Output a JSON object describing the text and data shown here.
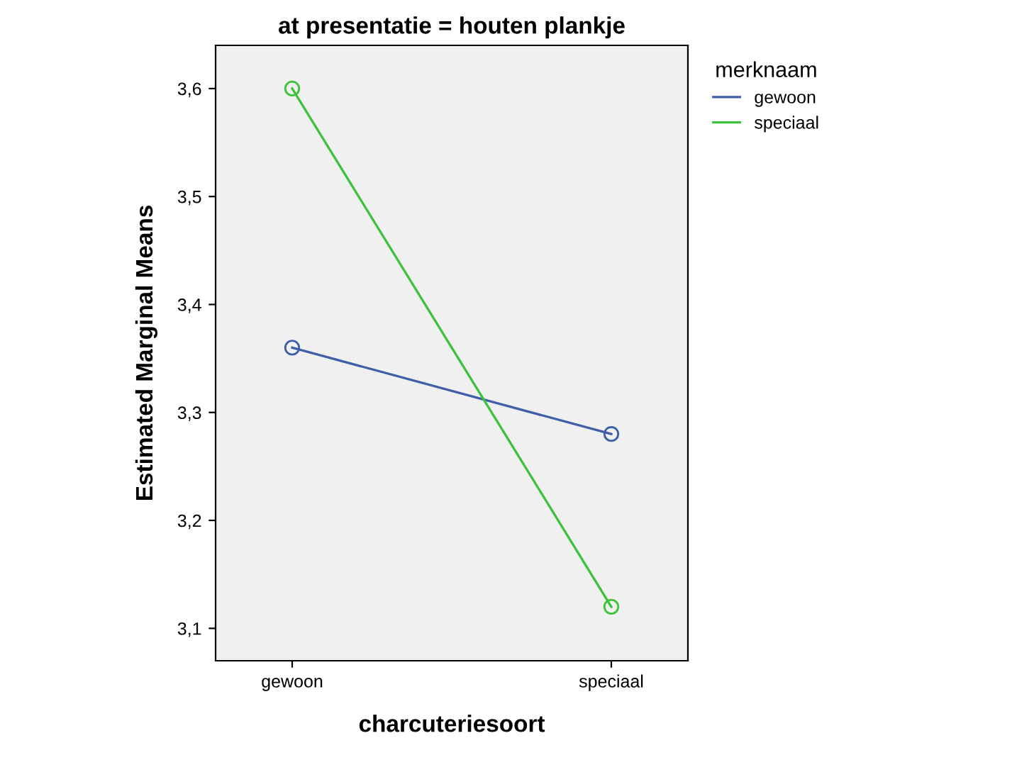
{
  "chart_data": {
    "type": "line",
    "title": "at presentatie = houten plankje",
    "xlabel": "charcuteriesoort",
    "ylabel": "Estimated Marginal Means",
    "legend_title": "merknaam",
    "categories": [
      "gewoon",
      "speciaal"
    ],
    "series": [
      {
        "name": "gewoon",
        "color": "#3e5ea8",
        "values": [
          3.36,
          3.28
        ]
      },
      {
        "name": "speciaal",
        "color": "#3cc23c",
        "values": [
          3.6,
          3.12
        ]
      }
    ],
    "ylim": [
      3.07,
      3.64
    ],
    "yticks": [
      {
        "value": 3.1,
        "label": "3,1"
      },
      {
        "value": 3.2,
        "label": "3,2"
      },
      {
        "value": 3.3,
        "label": "3,3"
      },
      {
        "value": 3.4,
        "label": "3,4"
      },
      {
        "value": 3.5,
        "label": "3,5"
      },
      {
        "value": 3.6,
        "label": "3,6"
      }
    ],
    "marker": "circle",
    "line_style": "solid",
    "grid": false,
    "legend": "top right"
  }
}
